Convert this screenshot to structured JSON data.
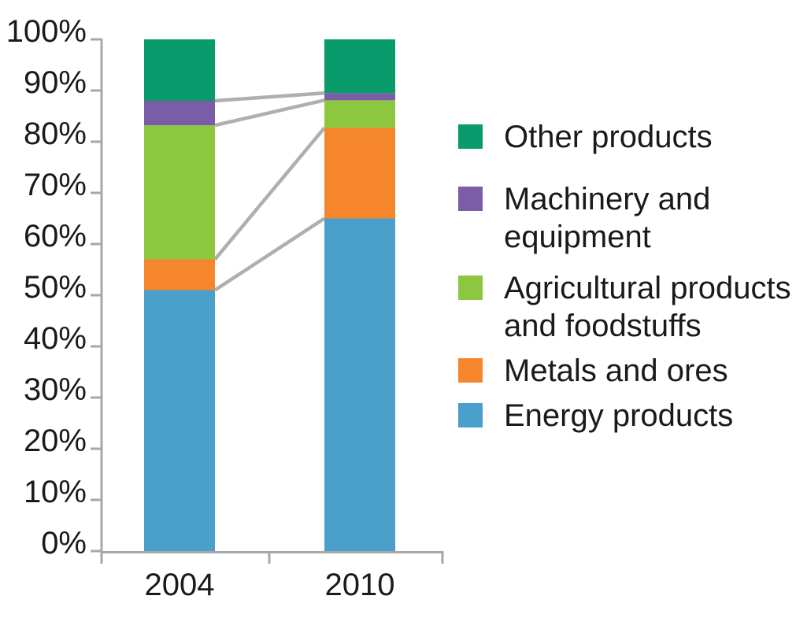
{
  "chart_data": {
    "type": "bar",
    "stacked": true,
    "unit": "percent",
    "title": "",
    "xlabel": "",
    "ylabel": "",
    "categories": [
      "2004",
      "2010"
    ],
    "series": [
      {
        "name": "Energy products",
        "color": "#4A9FCB",
        "values": [
          51.0,
          65.0
        ]
      },
      {
        "name": "Metals and ores",
        "color": "#F6862B",
        "values": [
          6.0,
          17.7
        ]
      },
      {
        "name": "Agricultural products and foodstuffs",
        "color": "#8DC63F",
        "values": [
          26.2,
          5.4
        ]
      },
      {
        "name": "Machinery and equipment",
        "color": "#7B5CA7",
        "values": [
          4.8,
          1.4
        ]
      },
      {
        "name": "Other products",
        "color": "#0A9B6C",
        "values": [
          12.0,
          10.5
        ]
      }
    ],
    "ylim": [
      0,
      100
    ],
    "yticks": [
      "0%",
      "10%",
      "20%",
      "30%",
      "40%",
      "50%",
      "60%",
      "70%",
      "80%",
      "90%",
      "100%"
    ],
    "grid": false,
    "legend_position": "right",
    "connector_lines_between_segment_boundaries": true,
    "axis_color": "#A7A7A7",
    "connector_color": "#AFAFAF",
    "text_color": "#1A1A1A"
  },
  "legend": {
    "items": [
      {
        "color": "#0A9B6C",
        "lines": [
          "Other products"
        ]
      },
      {
        "color": "#7B5CA7",
        "lines": [
          "Machinery and",
          "equipment"
        ]
      },
      {
        "color": "#8DC63F",
        "lines": [
          "Agricultural products",
          "and foodstuffs"
        ]
      },
      {
        "color": "#F6862B",
        "lines": [
          "Metals and ores"
        ]
      },
      {
        "color": "#4A9FCB",
        "lines": [
          "Energy products"
        ]
      }
    ]
  }
}
